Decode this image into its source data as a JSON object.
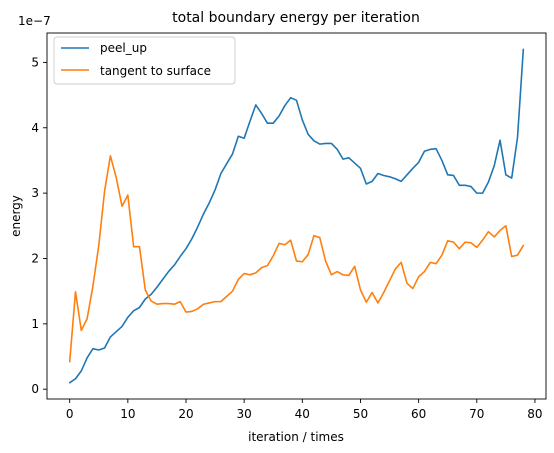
{
  "chart_data": {
    "type": "line",
    "title": "total boundary energy per iteration",
    "xlabel": "iteration / times",
    "ylabel": "energy",
    "y_scale_label": "1e−7",
    "xlim": [
      -3.9,
      81.9
    ],
    "ylim": [
      -0.15,
      5.45
    ],
    "x_ticks": [
      0,
      10,
      20,
      30,
      40,
      50,
      60,
      70,
      80
    ],
    "y_ticks": [
      0,
      1,
      2,
      3,
      4,
      5
    ],
    "legend_position": "top-left",
    "grid": false,
    "series": [
      {
        "name": "peel_up",
        "color": "#1f77b4",
        "x": [
          0,
          1,
          2,
          3,
          4,
          5,
          6,
          7,
          8,
          9,
          10,
          11,
          12,
          13,
          14,
          15,
          16,
          17,
          18,
          19,
          20,
          21,
          22,
          23,
          24,
          25,
          26,
          27,
          28,
          29,
          30,
          31,
          32,
          33,
          34,
          35,
          36,
          37,
          38,
          39,
          40,
          41,
          42,
          43,
          44,
          45,
          46,
          47,
          48,
          49,
          50,
          51,
          52,
          53,
          54,
          55,
          56,
          57,
          58,
          59,
          60,
          61,
          62,
          63,
          64,
          65,
          66,
          67,
          68,
          69,
          70,
          71,
          72,
          73,
          74,
          75,
          76,
          77,
          78
        ],
        "y": [
          0.1,
          0.16,
          0.28,
          0.48,
          0.62,
          0.6,
          0.63,
          0.8,
          0.88,
          0.96,
          1.1,
          1.2,
          1.25,
          1.38,
          1.45,
          1.56,
          1.68,
          1.8,
          1.9,
          2.03,
          2.15,
          2.3,
          2.48,
          2.68,
          2.85,
          3.05,
          3.3,
          3.45,
          3.6,
          3.87,
          3.84,
          4.1,
          4.35,
          4.22,
          4.07,
          4.07,
          4.18,
          4.34,
          4.46,
          4.42,
          4.12,
          3.9,
          3.8,
          3.75,
          3.76,
          3.76,
          3.67,
          3.52,
          3.54,
          3.46,
          3.38,
          3.14,
          3.18,
          3.3,
          3.27,
          3.25,
          3.22,
          3.18,
          3.28,
          3.38,
          3.47,
          3.64,
          3.67,
          3.68,
          3.5,
          3.28,
          3.27,
          3.12,
          3.12,
          3.1,
          3.0,
          3.0,
          3.17,
          3.42,
          3.81,
          3.28,
          3.23,
          3.85,
          5.2
        ]
      },
      {
        "name": "tangent to surface",
        "color": "#ff7f0e",
        "x": [
          0,
          1,
          2,
          3,
          4,
          5,
          6,
          7,
          8,
          9,
          10,
          11,
          12,
          13,
          14,
          15,
          16,
          17,
          18,
          19,
          20,
          21,
          22,
          23,
          24,
          25,
          26,
          27,
          28,
          29,
          30,
          31,
          32,
          33,
          34,
          35,
          36,
          37,
          38,
          39,
          40,
          41,
          42,
          43,
          44,
          45,
          46,
          47,
          48,
          49,
          50,
          51,
          52,
          53,
          54,
          55,
          56,
          57,
          58,
          59,
          60,
          61,
          62,
          63,
          64,
          65,
          66,
          67,
          68,
          69,
          70,
          71,
          72,
          73,
          74,
          75,
          76,
          77,
          78
        ],
        "y": [
          0.42,
          1.49,
          0.9,
          1.08,
          1.58,
          2.2,
          3.03,
          3.57,
          3.24,
          2.8,
          2.97,
          2.18,
          2.18,
          1.52,
          1.35,
          1.3,
          1.31,
          1.31,
          1.3,
          1.34,
          1.18,
          1.19,
          1.23,
          1.3,
          1.32,
          1.34,
          1.34,
          1.42,
          1.5,
          1.68,
          1.77,
          1.75,
          1.78,
          1.86,
          1.89,
          2.04,
          2.23,
          2.21,
          2.28,
          1.96,
          1.95,
          2.06,
          2.35,
          2.32,
          1.96,
          1.75,
          1.8,
          1.75,
          1.74,
          1.88,
          1.52,
          1.33,
          1.48,
          1.32,
          1.48,
          1.66,
          1.84,
          1.94,
          1.62,
          1.54,
          1.72,
          1.8,
          1.94,
          1.92,
          2.05,
          2.27,
          2.25,
          2.15,
          2.25,
          2.24,
          2.17,
          2.28,
          2.41,
          2.33,
          2.43,
          2.5,
          2.03,
          2.05,
          2.2
        ]
      }
    ]
  }
}
